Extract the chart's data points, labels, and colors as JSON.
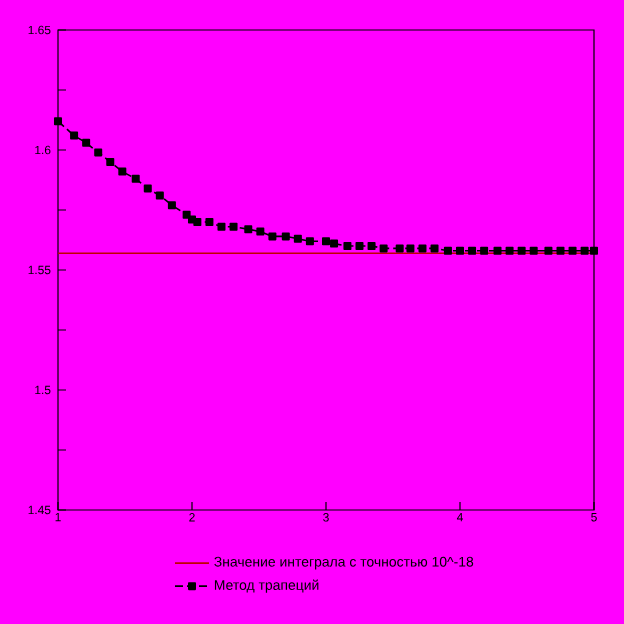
{
  "chart_data": {
    "type": "line",
    "xlim": [
      1,
      5
    ],
    "xticks": [
      1,
      2,
      3,
      4,
      5
    ],
    "ylim": [
      1.45,
      1.65
    ],
    "yticks": [
      {
        "value": 1.45,
        "label": "1.45"
      },
      {
        "value": 1.475,
        "label": null
      },
      {
        "value": 1.5,
        "label": "1.5"
      },
      {
        "value": 1.525,
        "label": null
      },
      {
        "value": 1.55,
        "label": "1.55"
      },
      {
        "value": 1.575,
        "label": null
      },
      {
        "value": 1.6,
        "label": "1.6"
      },
      {
        "value": 1.625,
        "label": null
      },
      {
        "value": 1.65,
        "label": "1.65"
      }
    ],
    "grid": false,
    "legend": "bottom",
    "series": [
      {
        "name": "Значение интеграла с точностью 10^-18",
        "color": "#c00000",
        "marker": "none",
        "line_style": "solid",
        "x": [
          1,
          5
        ],
        "values": [
          1.557,
          1.557
        ]
      },
      {
        "name": "Метод трапеций",
        "color": "#000000",
        "marker": "square",
        "line_style": "dashed",
        "x": [
          1.0,
          1.12,
          1.21,
          1.3,
          1.39,
          1.48,
          1.58,
          1.67,
          1.76,
          1.85,
          1.96,
          2.0,
          2.04,
          2.13,
          2.22,
          2.31,
          2.42,
          2.51,
          2.6,
          2.7,
          2.79,
          2.88,
          3.0,
          3.06,
          3.16,
          3.25,
          3.34,
          3.43,
          3.55,
          3.63,
          3.72,
          3.81,
          3.91,
          4.0,
          4.09,
          4.18,
          4.28,
          4.37,
          4.46,
          4.55,
          4.66,
          4.75,
          4.84,
          4.93,
          5.0
        ],
        "values": [
          1.612,
          1.606,
          1.603,
          1.599,
          1.595,
          1.591,
          1.588,
          1.584,
          1.581,
          1.577,
          1.573,
          1.571,
          1.57,
          1.57,
          1.568,
          1.568,
          1.567,
          1.566,
          1.564,
          1.564,
          1.563,
          1.562,
          1.562,
          1.561,
          1.56,
          1.56,
          1.56,
          1.559,
          1.559,
          1.559,
          1.559,
          1.559,
          1.558,
          1.558,
          1.558,
          1.558,
          1.558,
          1.558,
          1.558,
          1.558,
          1.558,
          1.558,
          1.558,
          1.558,
          1.558
        ]
      }
    ]
  }
}
